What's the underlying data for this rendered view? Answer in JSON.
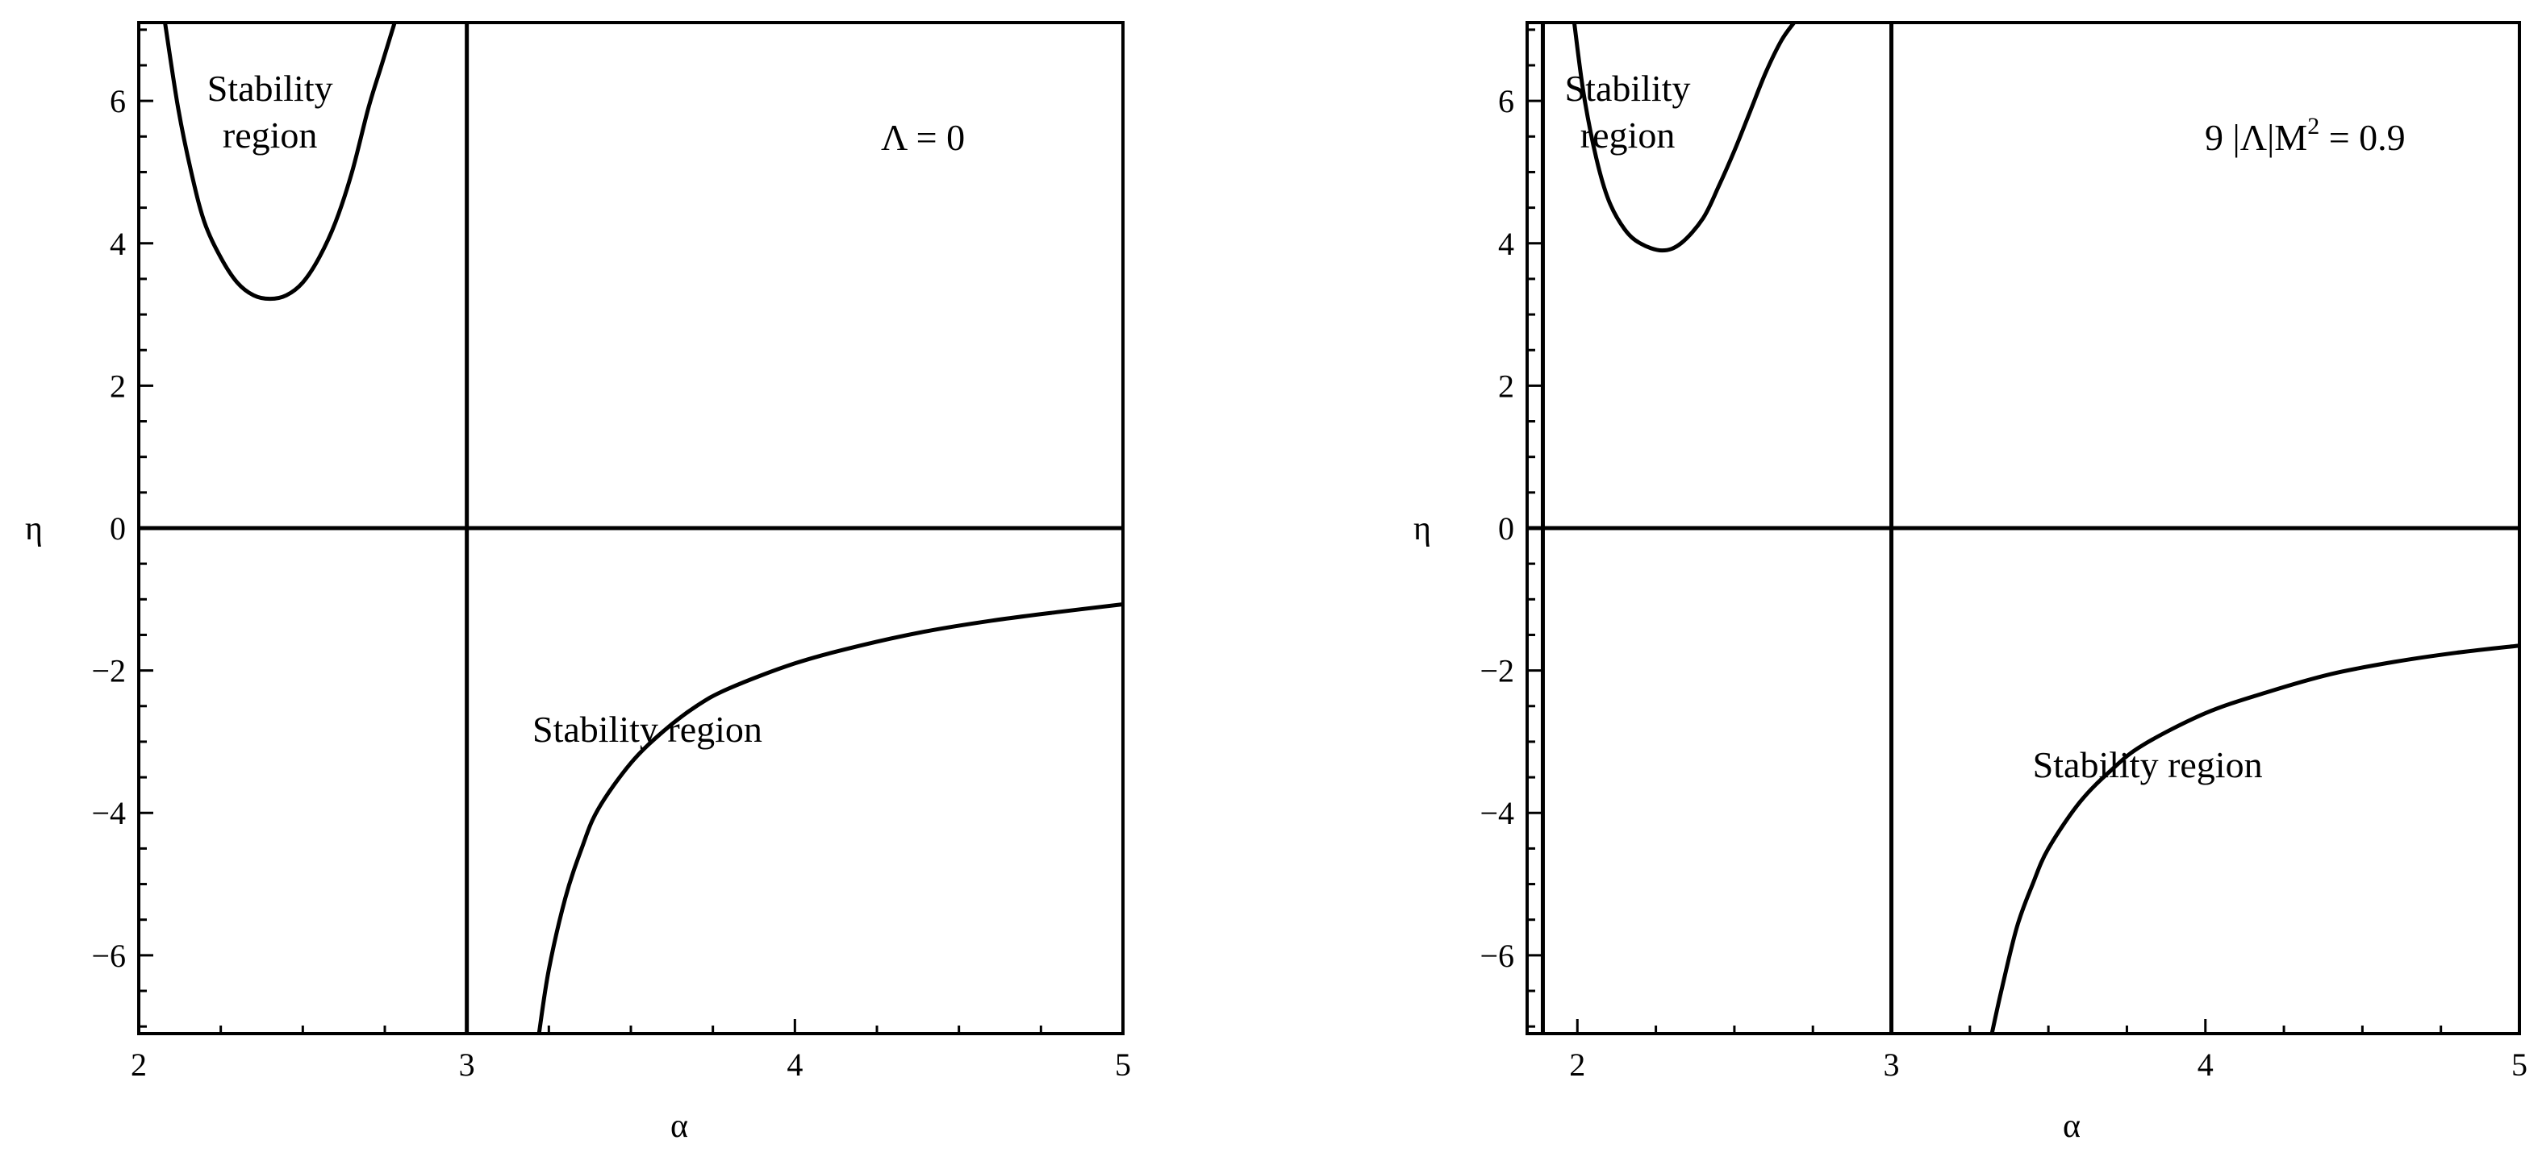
{
  "chart_data": [
    {
      "type": "line",
      "annotation": "Λ = 0",
      "xlabel": "α",
      "ylabel": "η",
      "xlim": [
        2,
        5
      ],
      "ylim": [
        -7.1,
        7.1
      ],
      "xticks": [
        2,
        3,
        4,
        5
      ],
      "yticks": [
        -6,
        -4,
        -2,
        0,
        2,
        4,
        6
      ],
      "tick_labels_x": [
        "2",
        "3",
        "4",
        "5"
      ],
      "tick_labels_y": [
        "−6",
        "−4",
        "−2",
        "0",
        "2",
        "4",
        "6"
      ],
      "grid": false,
      "vertical_lines": [
        3
      ],
      "horizontal_lines": [
        0
      ],
      "region_labels": [
        {
          "lines": [
            "Stability",
            "region"
          ],
          "x": 2.4,
          "y": 6.0
        },
        {
          "lines": [
            "Stability region"
          ],
          "x": 3.2,
          "y": -3.0
        }
      ],
      "series": [
        {
          "x": [
            2.08,
            2.12,
            2.16,
            2.2,
            2.25,
            2.3,
            2.35,
            2.4,
            2.45,
            2.5,
            2.55,
            2.6,
            2.65,
            2.7,
            2.74,
            2.78
          ],
          "y": [
            7.1,
            5.9,
            5.0,
            4.3,
            3.8,
            3.45,
            3.27,
            3.22,
            3.27,
            3.45,
            3.8,
            4.3,
            5.0,
            5.9,
            6.5,
            7.1
          ]
        },
        {
          "x": [
            3.22,
            3.25,
            3.3,
            3.35,
            3.4,
            3.5,
            3.6,
            3.7,
            3.8,
            4.0,
            4.2,
            4.4,
            4.6,
            4.8,
            5.0
          ],
          "y": [
            -7.1,
            -6.2,
            -5.2,
            -4.5,
            -3.95,
            -3.3,
            -2.85,
            -2.5,
            -2.25,
            -1.9,
            -1.65,
            -1.45,
            -1.3,
            -1.18,
            -1.07
          ]
        }
      ]
    },
    {
      "type": "line",
      "annotation_parts": {
        "pre": "9 |Λ|M",
        "sup": "2",
        "post": " = 0.9"
      },
      "xlabel": "α",
      "ylabel": "η",
      "xlim": [
        1.84,
        5
      ],
      "ylim": [
        -7.1,
        7.1
      ],
      "xticks": [
        2,
        3,
        4,
        5
      ],
      "yticks": [
        -6,
        -4,
        -2,
        0,
        2,
        4,
        6
      ],
      "tick_labels_x": [
        "2",
        "3",
        "4",
        "5"
      ],
      "tick_labels_y": [
        "−6",
        "−4",
        "−2",
        "0",
        "2",
        "4",
        "6"
      ],
      "grid": false,
      "vertical_lines": [
        1.89,
        3
      ],
      "horizontal_lines": [
        0
      ],
      "region_labels": [
        {
          "lines": [
            "Stability",
            "region"
          ],
          "x": 2.16,
          "y": 6.0
        },
        {
          "lines": [
            "Stability region"
          ],
          "x": 3.45,
          "y": -3.5
        }
      ],
      "series": [
        {
          "x": [
            1.99,
            2.02,
            2.06,
            2.1,
            2.15,
            2.2,
            2.27,
            2.33,
            2.4,
            2.45,
            2.5,
            2.55,
            2.6,
            2.65,
            2.69
          ],
          "y": [
            7.1,
            6.1,
            5.2,
            4.6,
            4.2,
            4.0,
            3.9,
            4.0,
            4.35,
            4.8,
            5.3,
            5.85,
            6.4,
            6.85,
            7.1
          ]
        },
        {
          "x": [
            3.32,
            3.35,
            3.4,
            3.45,
            3.5,
            3.6,
            3.7,
            3.8,
            4.0,
            4.2,
            4.4,
            4.6,
            4.8,
            5.0
          ],
          "y": [
            -7.1,
            -6.5,
            -5.6,
            -5.0,
            -4.5,
            -3.85,
            -3.4,
            -3.05,
            -2.6,
            -2.3,
            -2.05,
            -1.88,
            -1.75,
            -1.65
          ]
        }
      ]
    }
  ]
}
